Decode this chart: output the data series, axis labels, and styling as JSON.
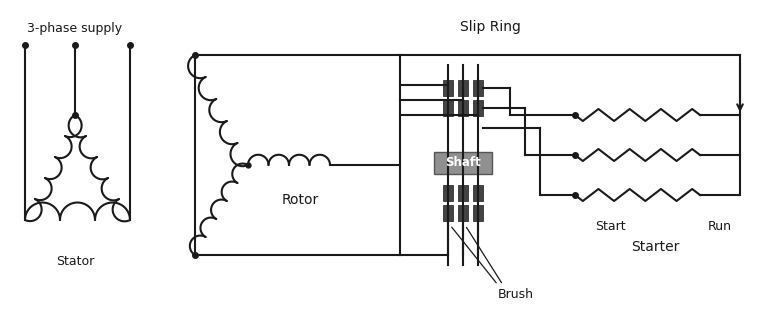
{
  "bg_color": "#ffffff",
  "lc": "#1a1a1a",
  "lw": 1.5,
  "labels": {
    "3phase": "3-phase supply",
    "stator": "Stator",
    "rotor": "Rotor",
    "slip_ring": "Slip Ring",
    "shaft": "Shaft",
    "brush": "Brush",
    "start": "Start",
    "run": "Run",
    "starter": "Starter"
  },
  "shaft_fc": "#909090",
  "ring_fc": "#444444",
  "fs_label": 9,
  "fs_title": 10
}
